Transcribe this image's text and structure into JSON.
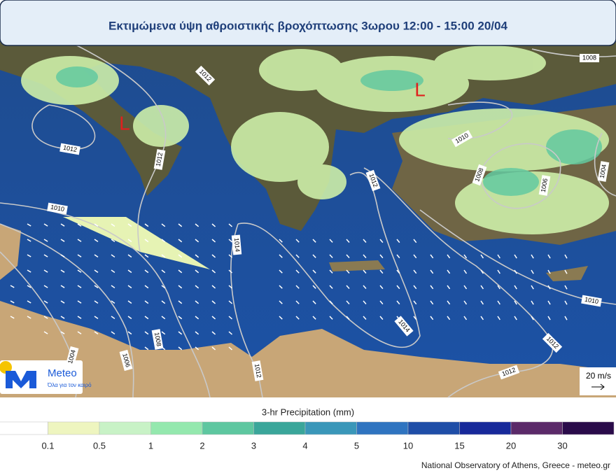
{
  "header": {
    "title": "Εκτιμώμενα ύψη αθροιστικής βροχόπτωσης 3ωρου 12:00 - 15:00 20/04"
  },
  "map": {
    "isobar_labels": [
      1008,
      1012,
      1012,
      1012,
      1010,
      1010,
      1008,
      1006,
      1004,
      1012,
      1014,
      1014,
      1012,
      1010,
      1012,
      1012,
      1008,
      1006,
      1004
    ],
    "lows": [
      "L",
      "L"
    ],
    "wind_scale": "20 m/s",
    "logo": {
      "name": "Meteo",
      "tagline": "Όλα για τον καιρό"
    }
  },
  "colorbar": {
    "title": "3-hr Precipitation (mm)",
    "ticks": [
      0.1,
      0.5,
      1,
      2,
      3,
      4,
      5,
      10,
      15,
      20,
      30
    ],
    "colors": [
      "#ffffff",
      "#eef5bf",
      "#c8f2c6",
      "#94e8ae",
      "#5ec7a0",
      "#3aa69a",
      "#3a97b9",
      "#2f74c0",
      "#1f4ea7",
      "#17299a",
      "#5b2a69",
      "#2a0b4a"
    ]
  },
  "footer": {
    "credit": "National Observatory of Athens, Greece - meteo.gr"
  }
}
